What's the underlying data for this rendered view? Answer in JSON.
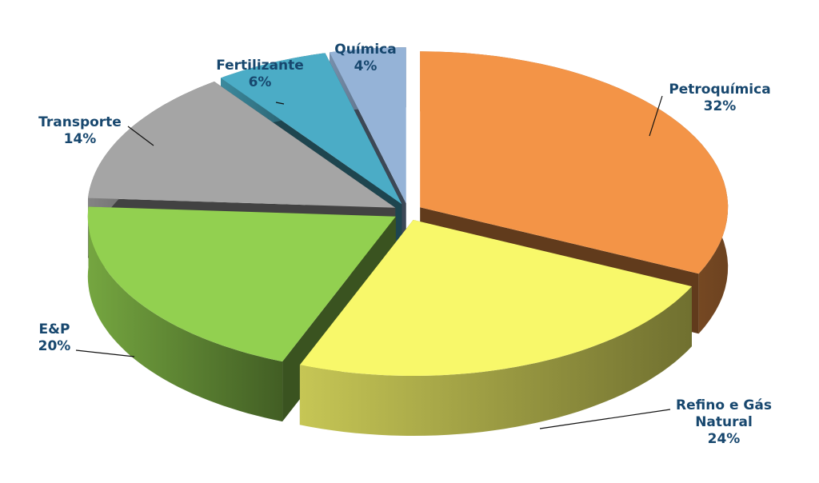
{
  "chart_data": {
    "type": "pie3d",
    "categories": [
      "Petroquímica",
      "Refino e Gás Natural",
      "E&P",
      "Transporte",
      "Fertilizante",
      "Química"
    ],
    "values": [
      32,
      24,
      20,
      14,
      6,
      4
    ],
    "value_labels": [
      "32%",
      "24%",
      "20%",
      "14%",
      "6%",
      "4%"
    ],
    "colors": [
      "#f39447",
      "#f8f86a",
      "#92d050",
      "#a5a5a5",
      "#4bacc6",
      "#95b3d7"
    ]
  }
}
